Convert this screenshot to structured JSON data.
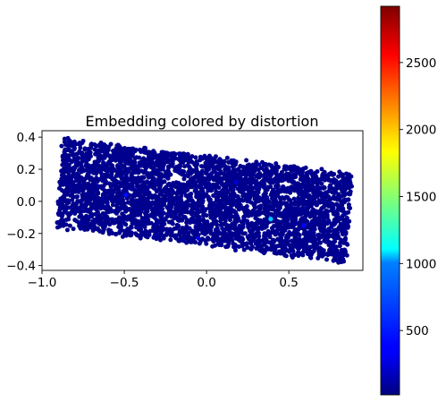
{
  "chart_data": {
    "type": "scatter",
    "title": "Embedding colored by distortion",
    "xlabel": "",
    "ylabel": "",
    "xlim": [
      -1.0,
      0.95
    ],
    "ylim": [
      -0.43,
      0.44
    ],
    "xticks": [
      -1.0,
      -0.5,
      0.0,
      0.5
    ],
    "xtick_labels": [
      "−1.0",
      "−0.5",
      "0.0",
      "0.5"
    ],
    "yticks": [
      0.4,
      0.2,
      0.0,
      -0.2,
      -0.4
    ],
    "ytick_labels": [
      "0.4",
      "0.2",
      "0.0",
      "−0.2",
      "−0.4"
    ],
    "aspect": "equal",
    "region_corners": [
      [
        -0.87,
        0.39
      ],
      [
        0.89,
        0.17
      ],
      [
        0.84,
        -0.38
      ],
      [
        -0.91,
        -0.16
      ]
    ],
    "point_count": 4000,
    "point_color_value_typical": 60,
    "highlight_points": [
      {
        "x": 0.39,
        "y": -0.11,
        "value": 950
      },
      {
        "x": -0.49,
        "y": 0.04,
        "value": 420
      },
      {
        "x": 0.59,
        "y": -0.15,
        "value": 380
      },
      {
        "x": -0.05,
        "y": -0.23,
        "value": 300
      },
      {
        "x": 0.18,
        "y": 0.12,
        "value": 260
      }
    ],
    "colormap": "jet",
    "colorbar": {
      "min": 20,
      "max": 2920,
      "ticks": [
        500,
        1000,
        1500,
        2000,
        2500
      ],
      "tick_labels": [
        "500",
        "1000",
        "1500",
        "2000",
        "2500"
      ]
    }
  }
}
